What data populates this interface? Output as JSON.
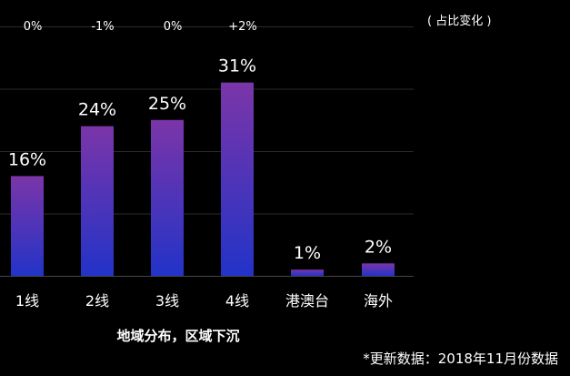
{
  "chart_data": {
    "type": "bar",
    "categories": [
      "1线",
      "2线",
      "3线",
      "4线",
      "港澳台",
      "海外"
    ],
    "values": [
      16,
      24,
      25,
      31,
      1,
      2
    ],
    "value_labels": [
      "16%",
      "24%",
      "25%",
      "31%",
      "1%",
      "2%"
    ],
    "change_labels": [
      "0%",
      "-1%",
      "0%",
      "+2%"
    ],
    "change_header": "( 占比变化 )",
    "title": "",
    "xlabel": "地域分布，区域下沉",
    "ylabel": "",
    "ylim": [
      0,
      40
    ],
    "grid": true,
    "colors": {
      "bar_top": "#7b35a8",
      "bar_bottom": "#2233c8",
      "grid": "#2a2a2a",
      "background": "#000000"
    }
  },
  "footnote": "*更新数据：2018年11月份数据"
}
